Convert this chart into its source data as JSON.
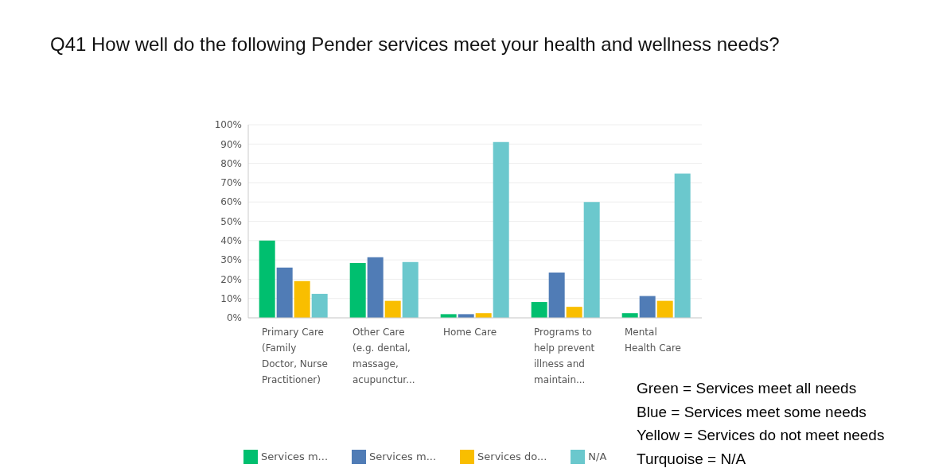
{
  "chart_data": {
    "type": "bar",
    "title": "Q41 How well do the following Pender services meet your health and wellness needs?",
    "categories": [
      "Primary Care\n(Family\nDoctor, Nurse\nPractitioner)",
      "Other Care\n(e.g. dental,\nmassage,\nacupunctur...",
      "Home Care",
      "Programs to\nhelp prevent\nillness and\nmaintain...",
      "Mental\nHealth Care"
    ],
    "series": [
      {
        "name": "Services m...",
        "color": "#00bf6f",
        "values": [
          40,
          28.4,
          1.9,
          8.2,
          2.4
        ]
      },
      {
        "name": "Services m...",
        "color": "#507cb6",
        "values": [
          26,
          31.4,
          1.9,
          23.5,
          11.3
        ]
      },
      {
        "name": "Services do...",
        "color": "#f9be00",
        "values": [
          19,
          8.8,
          2.4,
          5.7,
          8.8
        ]
      },
      {
        "name": "N/A",
        "color": "#6bc8cd",
        "values": [
          12.4,
          28.9,
          91,
          60,
          74.7
        ]
      }
    ],
    "ylim": [
      0,
      100
    ],
    "yticks": [
      {
        "value": 0,
        "label": "0%"
      },
      {
        "value": 10,
        "label": "10%"
      },
      {
        "value": 20,
        "label": "20%"
      },
      {
        "value": 30,
        "label": "30%"
      },
      {
        "value": 40,
        "label": "40%"
      },
      {
        "value": 50,
        "label": "50%"
      },
      {
        "value": 60,
        "label": "60%"
      },
      {
        "value": 70,
        "label": "70%"
      },
      {
        "value": 80,
        "label": "80%"
      },
      {
        "value": 90,
        "label": "90%"
      },
      {
        "value": 100,
        "label": "100%"
      }
    ],
    "grid": "y",
    "legend": "bottom",
    "annotations": [
      "Green = Services meet all needs",
      "Blue = Services meet some needs",
      "Yellow = Services do not meet needs",
      "Turquoise = N/A"
    ]
  }
}
